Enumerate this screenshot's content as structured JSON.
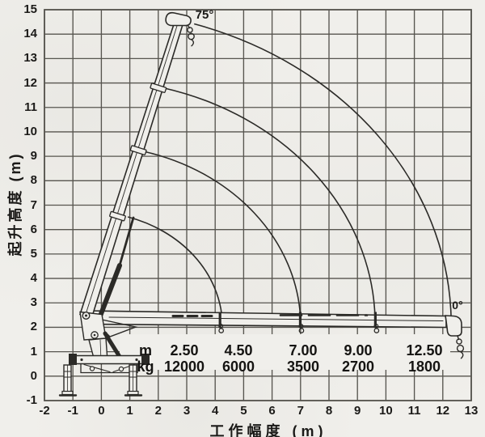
{
  "colors": {
    "paper": "#f0efeb",
    "grid": "#57554f",
    "ink": "#2b2a27",
    "text": "#1b1a18"
  },
  "chart_data": {
    "type": "line",
    "xlabel": "工作幅度 (m)",
    "ylabel": "起升高度 (m)",
    "xlim": [
      -2,
      13
    ],
    "ylim": [
      -1,
      15
    ],
    "x_ticks": [
      -2,
      -1,
      0,
      1,
      2,
      3,
      4,
      5,
      6,
      7,
      8,
      9,
      10,
      11,
      12,
      13
    ],
    "y_ticks": [
      15,
      14,
      13,
      12,
      11,
      10,
      9,
      8,
      7,
      6,
      5,
      4,
      3,
      2,
      1,
      0,
      -1
    ],
    "grid": true,
    "legend_position": "none",
    "boom_angle_labels": {
      "max": "75°",
      "min": "0°"
    },
    "load_table": {
      "row_labels": [
        "m",
        "kg"
      ],
      "radius_m": [
        "2.50",
        "4.50",
        "7.00",
        "9.00",
        "12.50"
      ],
      "capacity_kg": [
        "12000",
        "6000",
        "3500",
        "2700",
        "1800"
      ]
    },
    "envelope_arcs": [
      {
        "from": [
          3.26,
          14.42
        ],
        "to": [
          12.29,
          2.48
        ],
        "r": 12.9
      },
      {
        "from": [
          2.18,
          11.8
        ],
        "to": [
          9.62,
          2.35
        ],
        "r": 10.0
      },
      {
        "from": [
          1.49,
          9.2
        ],
        "to": [
          7.0,
          2.35
        ],
        "r": 7.4
      },
      {
        "from": [
          0.93,
          6.52
        ],
        "to": [
          4.25,
          2.28
        ],
        "r": 4.7
      }
    ],
    "boom_section_marks_x": [
      4.17,
      6.99,
      9.63
    ]
  }
}
